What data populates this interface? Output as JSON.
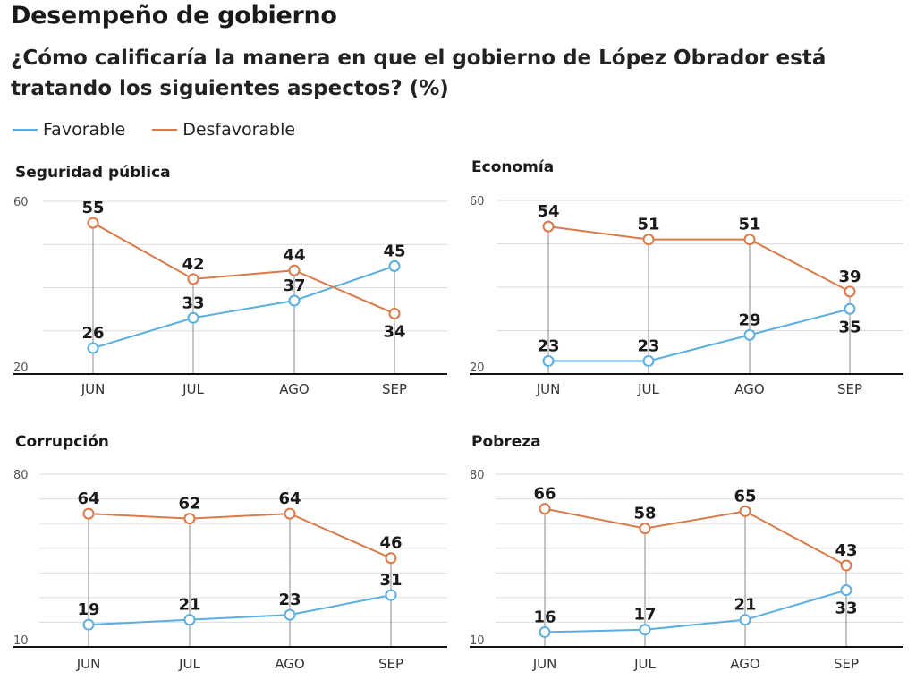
{
  "header": {
    "title": "Desempeño de gobierno",
    "subtitle": "¿Cómo calificaría la manera en que el gobierno de López Obrador está tratando los siguientes aspectos? (%)"
  },
  "legend": [
    {
      "name": "Favorable",
      "color": "#5aaee0"
    },
    {
      "name": "Desfavorable",
      "color": "#d97a4a"
    }
  ],
  "chart_data": [
    {
      "type": "line",
      "title": "Seguridad pública",
      "categories": [
        "JUN",
        "JUL",
        "AGO",
        "SEP"
      ],
      "ylim": [
        20,
        60
      ],
      "yticks_labeled": [
        20,
        60
      ],
      "grid_step": 10,
      "series": [
        {
          "name": "Favorable",
          "values": [
            26,
            33,
            37,
            45
          ]
        },
        {
          "name": "Desfavorable",
          "values": [
            55,
            42,
            44,
            34
          ]
        }
      ]
    },
    {
      "type": "line",
      "title": "Economía",
      "categories": [
        "JUN",
        "JUL",
        "AGO",
        "SEP"
      ],
      "ylim": [
        20,
        60
      ],
      "yticks_labeled": [
        20,
        60
      ],
      "grid_step": 10,
      "series": [
        {
          "name": "Favorable",
          "values": [
            23,
            23,
            29,
            35
          ]
        },
        {
          "name": "Desfavorable",
          "values": [
            54,
            51,
            51,
            39
          ]
        }
      ]
    },
    {
      "type": "line",
      "title": "Corrupción",
      "categories": [
        "JUN",
        "JUL",
        "AGO",
        "SEP"
      ],
      "ylim": [
        10,
        80
      ],
      "yticks_labeled": [
        10,
        80
      ],
      "grid_step": 10,
      "series": [
        {
          "name": "Favorable",
          "values": [
            19,
            21,
            23,
            31
          ]
        },
        {
          "name": "Desfavorable",
          "values": [
            64,
            62,
            64,
            46
          ]
        }
      ]
    },
    {
      "type": "line",
      "title": "Pobreza",
      "categories": [
        "JUN",
        "JUL",
        "AGO",
        "SEP"
      ],
      "ylim": [
        10,
        80
      ],
      "yticks_labeled": [
        10,
        80
      ],
      "grid_step": 10,
      "series": [
        {
          "name": "Favorable",
          "values": [
            16,
            17,
            21,
            33
          ]
        },
        {
          "name": "Desfavorable",
          "values": [
            66,
            58,
            65,
            43
          ]
        }
      ]
    }
  ]
}
